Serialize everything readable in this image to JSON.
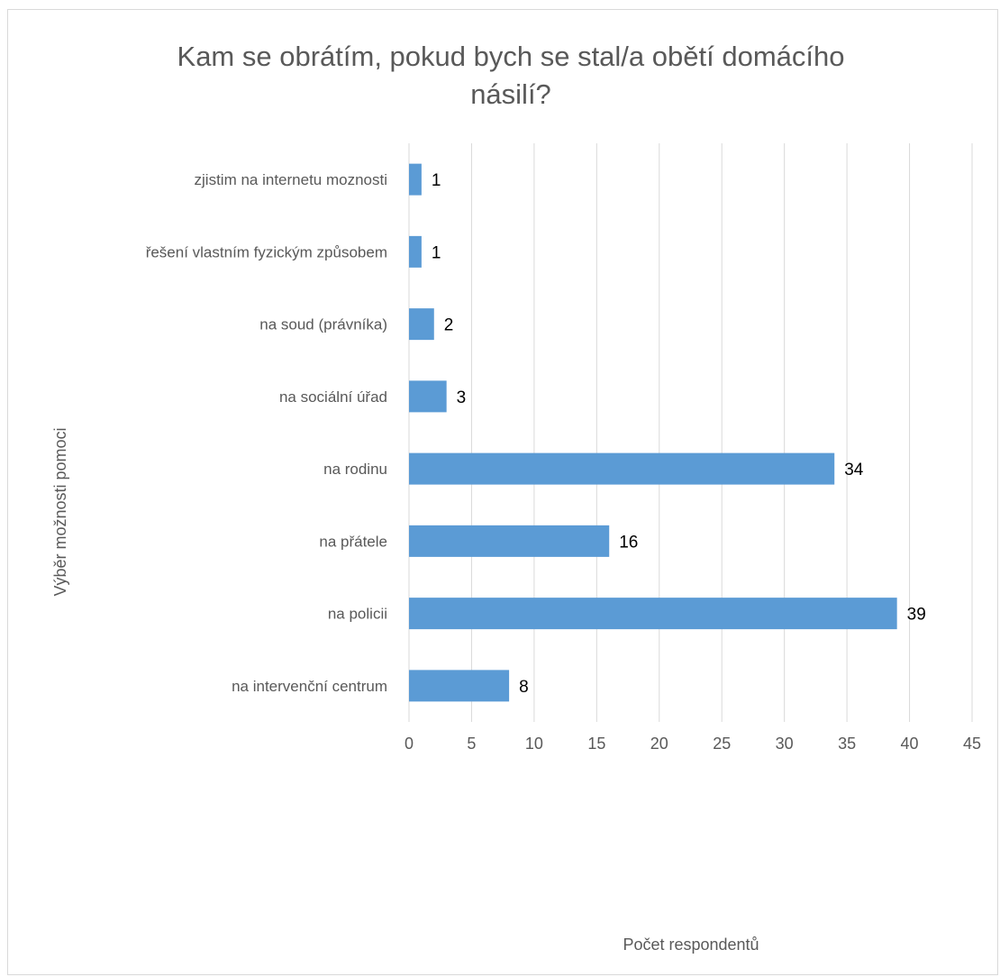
{
  "chart_data": {
    "type": "bar",
    "orientation": "horizontal",
    "title_lines": [
      "Kam se obrátím, pokud bych se stal/a obětí domácího",
      "násilí?"
    ],
    "xlabel": "Počet respondentů",
    "ylabel": "Výběr možnosti pomoci",
    "categories": [
      "zjistim na internetu moznosti",
      "řešení vlastním fyzickým způsobem",
      "na soud (právníka)",
      "na sociální úřad",
      "na rodinu",
      "na přátele",
      "na policii",
      "na intervenční centrum"
    ],
    "values": [
      1,
      1,
      2,
      3,
      34,
      16,
      39,
      8
    ],
    "value_labels": [
      "1",
      "1",
      "2",
      "3",
      "34",
      "16",
      "39",
      "8"
    ],
    "xlim": [
      0,
      45
    ],
    "xticks": [
      "0",
      "5",
      "10",
      "15",
      "20",
      "25",
      "30",
      "35",
      "40",
      "45"
    ],
    "grid": true,
    "bar_color": "#5b9bd5",
    "grid_color": "#d9d9d9"
  }
}
